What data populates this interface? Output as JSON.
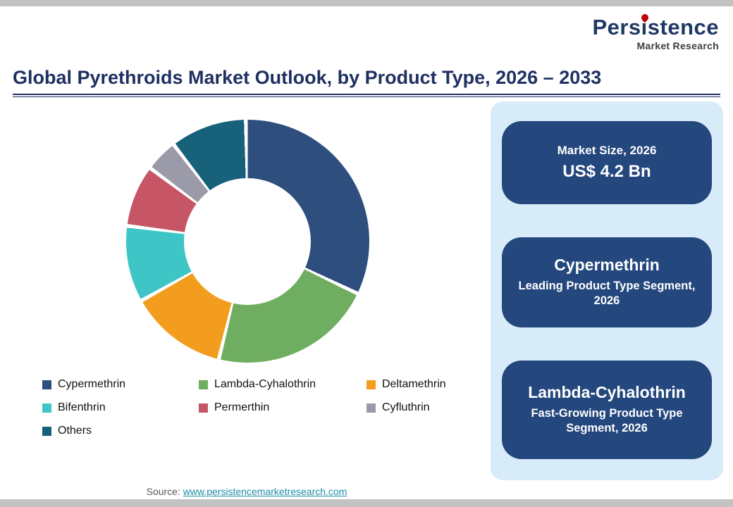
{
  "logo": {
    "brand": "Persistence",
    "sub": "Market Research",
    "pin_color": "#c00000"
  },
  "title": "Global Pyrethroids Market Outlook, by Product Type, 2026 – 2033",
  "chart_data": {
    "type": "pie",
    "subtype": "donut",
    "title": "Global Pyrethroids Market Outlook, by Product Type, 2026 – 2033",
    "start_angle_deg": 0,
    "direction": "clockwise",
    "legend_position": "bottom",
    "segments": [
      {
        "label": "Cypermethrin",
        "value": 33,
        "color": "#2e4e7e"
      },
      {
        "label": "Lambda-Cyhalothrin",
        "value": 22,
        "color": "#6fae60"
      },
      {
        "label": "Deltamethrin",
        "value": 13,
        "color": "#f29d1e"
      },
      {
        "label": "Bifenthrin",
        "value": 10,
        "color": "#3ec5c5"
      },
      {
        "label": "Permerthin",
        "value": 8,
        "color": "#c65565"
      },
      {
        "label": "Cyfluthrin",
        "value": 4,
        "color": "#9a9aa9"
      },
      {
        "label": "Others",
        "value": 10,
        "color": "#17617b"
      }
    ]
  },
  "panel": {
    "background": "#d8ebf8",
    "card_color": "#24477d",
    "cards": [
      {
        "top": "Market Size, 2026",
        "bottom": "US$ 4.2 Bn"
      },
      {
        "top": "Cypermethrin",
        "bottom": "Leading Product Type Segment, 2026"
      },
      {
        "top": "Lambda-Cyhalothrin",
        "bottom": "Fast-Growing Product Type Segment, 2026"
      }
    ]
  },
  "source": {
    "prefix": "Source: ",
    "link": "www.persistencemarketresearch.com"
  }
}
